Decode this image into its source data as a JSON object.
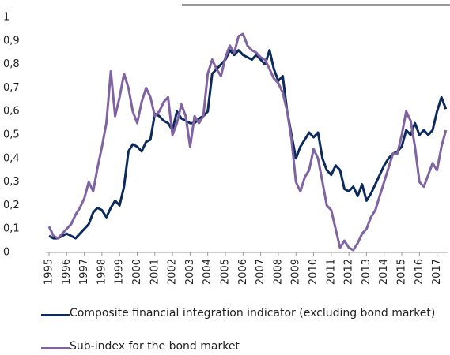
{
  "chart_data": {
    "type": "line",
    "x": [
      1995,
      1995.25,
      1995.5,
      1995.75,
      1996,
      1996.25,
      1996.5,
      1996.75,
      1997,
      1997.25,
      1997.5,
      1997.75,
      1998,
      1998.25,
      1998.5,
      1998.75,
      1999,
      1999.25,
      1999.5,
      1999.75,
      2000,
      2000.25,
      2000.5,
      2000.75,
      2001,
      2001.25,
      2001.5,
      2001.75,
      2002,
      2002.25,
      2002.5,
      2002.75,
      2003,
      2003.25,
      2003.5,
      2003.75,
      2004,
      2004.25,
      2004.5,
      2004.75,
      2005,
      2005.25,
      2005.5,
      2005.75,
      2006,
      2006.25,
      2006.5,
      2006.75,
      2007,
      2007.25,
      2007.5,
      2007.75,
      2008,
      2008.25,
      2008.5,
      2008.75,
      2009,
      2009.25,
      2009.5,
      2009.75,
      2010,
      2010.25,
      2010.5,
      2010.75,
      2011,
      2011.25,
      2011.5,
      2011.75,
      2012,
      2012.25,
      2012.5,
      2012.75,
      2013,
      2013.25,
      2013.5,
      2013.75,
      2014,
      2014.25,
      2014.5,
      2014.75,
      2015,
      2015.25,
      2015.5,
      2015.75,
      2016,
      2016.25,
      2016.5,
      2016.75,
      2017,
      2017.25,
      2017.5
    ],
    "series": [
      {
        "name": "Composite financial integration indicator (excluding bond market)",
        "color": "#0d2a5c",
        "values": [
          0.07,
          0.06,
          0.06,
          0.07,
          0.08,
          0.07,
          0.06,
          0.08,
          0.1,
          0.12,
          0.17,
          0.19,
          0.18,
          0.15,
          0.19,
          0.22,
          0.2,
          0.28,
          0.43,
          0.46,
          0.45,
          0.43,
          0.47,
          0.48,
          0.59,
          0.58,
          0.56,
          0.55,
          0.52,
          0.6,
          0.57,
          0.56,
          0.55,
          0.55,
          0.57,
          0.58,
          0.6,
          0.76,
          0.78,
          0.8,
          0.82,
          0.86,
          0.84,
          0.86,
          0.84,
          0.83,
          0.82,
          0.84,
          0.82,
          0.8,
          0.86,
          0.78,
          0.73,
          0.75,
          0.6,
          0.5,
          0.4,
          0.45,
          0.48,
          0.51,
          0.49,
          0.51,
          0.4,
          0.35,
          0.33,
          0.37,
          0.35,
          0.27,
          0.26,
          0.28,
          0.24,
          0.29,
          0.22,
          0.25,
          0.29,
          0.33,
          0.37,
          0.4,
          0.42,
          0.43,
          0.45,
          0.52,
          0.5,
          0.55,
          0.5,
          0.52,
          0.5,
          0.52,
          0.6,
          0.66,
          0.61
        ]
      },
      {
        "name": "Sub-index for the bond market",
        "color": "#8064a2",
        "values": [
          0.11,
          0.07,
          0.06,
          0.08,
          0.1,
          0.12,
          0.16,
          0.19,
          0.23,
          0.3,
          0.26,
          0.36,
          0.45,
          0.55,
          0.77,
          0.58,
          0.66,
          0.76,
          0.7,
          0.6,
          0.55,
          0.64,
          0.7,
          0.66,
          0.58,
          0.6,
          0.64,
          0.66,
          0.5,
          0.55,
          0.63,
          0.58,
          0.45,
          0.58,
          0.55,
          0.58,
          0.76,
          0.82,
          0.78,
          0.75,
          0.83,
          0.88,
          0.85,
          0.92,
          0.93,
          0.88,
          0.86,
          0.85,
          0.83,
          0.82,
          0.78,
          0.74,
          0.72,
          0.68,
          0.6,
          0.48,
          0.3,
          0.26,
          0.32,
          0.35,
          0.44,
          0.4,
          0.3,
          0.2,
          0.18,
          0.1,
          0.02,
          0.05,
          0.02,
          0.01,
          0.04,
          0.08,
          0.1,
          0.15,
          0.18,
          0.24,
          0.3,
          0.36,
          0.42,
          0.42,
          0.5,
          0.6,
          0.56,
          0.45,
          0.3,
          0.28,
          0.33,
          0.38,
          0.35,
          0.45,
          0.52
        ]
      }
    ],
    "xlim": [
      1995,
      2017.6
    ],
    "xticks": [
      1995,
      1996,
      1997,
      1998,
      1999,
      2000,
      2001,
      2002,
      2003,
      2004,
      2005,
      2006,
      2007,
      2008,
      2009,
      2010,
      2011,
      2012,
      2013,
      2014,
      2015,
      2016,
      2017
    ],
    "ylim": [
      0,
      1
    ],
    "yticks": [
      0,
      {
        "value": 0.1,
        "label": "0,1"
      },
      {
        "value": 0.2,
        "label": "0,2"
      },
      {
        "value": 0.3,
        "label": "0,3"
      },
      {
        "value": 0.4,
        "label": "0,4"
      },
      {
        "value": 0.5,
        "label": "0,5"
      },
      {
        "value": 0.6,
        "label": "0,6"
      },
      {
        "value": 0.7,
        "label": "0,7"
      },
      {
        "value": 0.8,
        "label": "0,8"
      },
      {
        "value": 0.9,
        "label": "0,9"
      },
      1
    ],
    "grid": false
  }
}
